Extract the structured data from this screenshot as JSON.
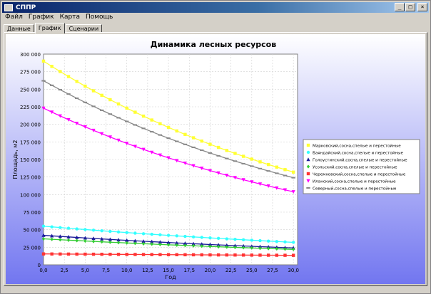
{
  "window": {
    "title": "СППР",
    "minimize": "_",
    "maximize": "□",
    "close": "×"
  },
  "menu": [
    {
      "label": "Файл"
    },
    {
      "label": "График"
    },
    {
      "label": "Карта"
    },
    {
      "label": "Помощь"
    }
  ],
  "tabs": [
    {
      "label": "Данные"
    },
    {
      "label": "График"
    },
    {
      "label": "Сценарии"
    }
  ],
  "active_tab": 1,
  "colors": {
    "title_start": "#0a246a",
    "background_gradient_top": "#ffffff",
    "background_gradient_bottom": "#7276f0"
  },
  "chart_data": {
    "type": "line",
    "title": "Динамика лесных ресурсов",
    "xlabel": "Год",
    "ylabel": "Площадь, м2",
    "xlim": [
      0,
      30.5
    ],
    "ylim": [
      0,
      300000
    ],
    "xticks": [
      "0,0",
      "2,5",
      "5,0",
      "7,5",
      "10,0",
      "12,5",
      "15,0",
      "17,5",
      "20,0",
      "22,5",
      "25,0",
      "27,5",
      "30,0"
    ],
    "yticks": [
      "0",
      "25 000",
      "50 000",
      "75 000",
      "100 000",
      "125 000",
      "150 000",
      "175 000",
      "200 000",
      "225 000",
      "250 000",
      "275 000",
      "300 000"
    ],
    "grid": true,
    "legend_position": "right",
    "series": [
      {
        "name": "Марковский,сосна,спелые и перестойные",
        "color": "#ffff33",
        "marker": "square",
        "start": 290000,
        "end": 132000
      },
      {
        "name": "Баяндайский,сосна,спелые и перестойные",
        "color": "#33ffff",
        "marker": "circle",
        "start": 55000,
        "end": 32000
      },
      {
        "name": "Голоустинский,сосна,спелые и перестойные",
        "color": "#1a1a99",
        "marker": "triangle-up",
        "start": 42000,
        "end": 24000
      },
      {
        "name": "Усольский,сосна,спелые и перестойные",
        "color": "#33cc33",
        "marker": "diamond",
        "start": 37000,
        "end": 22000
      },
      {
        "name": "Черемховский,сосна,спелые и перестойные",
        "color": "#ff3333",
        "marker": "square",
        "start": 15500,
        "end": 13500
      },
      {
        "name": "Иланский,сосна,спелые и перестойные",
        "color": "#ff00ff",
        "marker": "triangle-down",
        "start": 223000,
        "end": 104000
      },
      {
        "name": "Северный,сосна,спелые и перестойные",
        "color": "#888888",
        "marker": "dash",
        "start": 262000,
        "end": 124000
      }
    ]
  }
}
